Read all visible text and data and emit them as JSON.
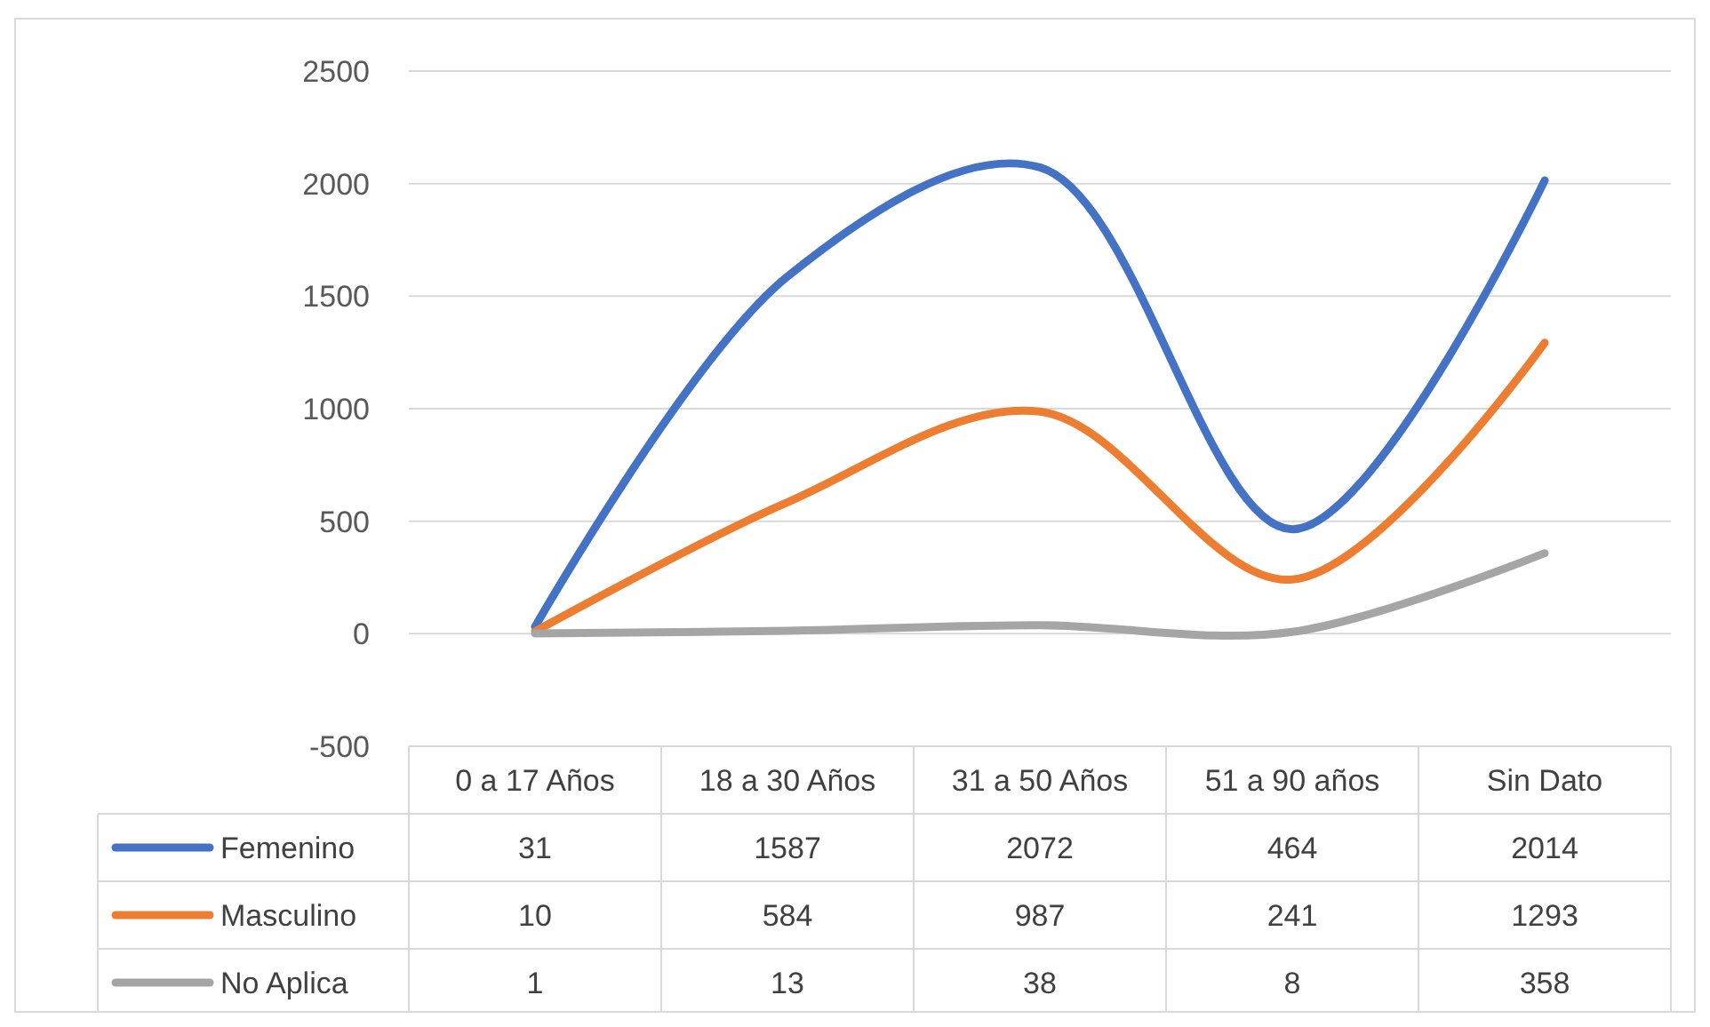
{
  "chart_data": {
    "type": "line",
    "categories": [
      "0 a 17 Años",
      "18 a 30 Años",
      "31 a 50 Años",
      "51 a 90 años",
      "Sin Dato"
    ],
    "series": [
      {
        "name": "Femenino",
        "color": "#4472c4",
        "values": [
          31,
          1587,
          2072,
          464,
          2014
        ]
      },
      {
        "name": "Masculino",
        "color": "#ed7d31",
        "values": [
          10,
          584,
          987,
          241,
          1293
        ]
      },
      {
        "name": "No Aplica",
        "color": "#a5a5a5",
        "values": [
          1,
          13,
          38,
          8,
          358
        ]
      }
    ],
    "ylim": [
      -500,
      2500
    ],
    "yticks": [
      -500,
      0,
      500,
      1000,
      1500,
      2000,
      2500
    ],
    "grid": "y",
    "data_labels": true,
    "legend": "bottom",
    "marker": "none",
    "line_style": "solid"
  }
}
